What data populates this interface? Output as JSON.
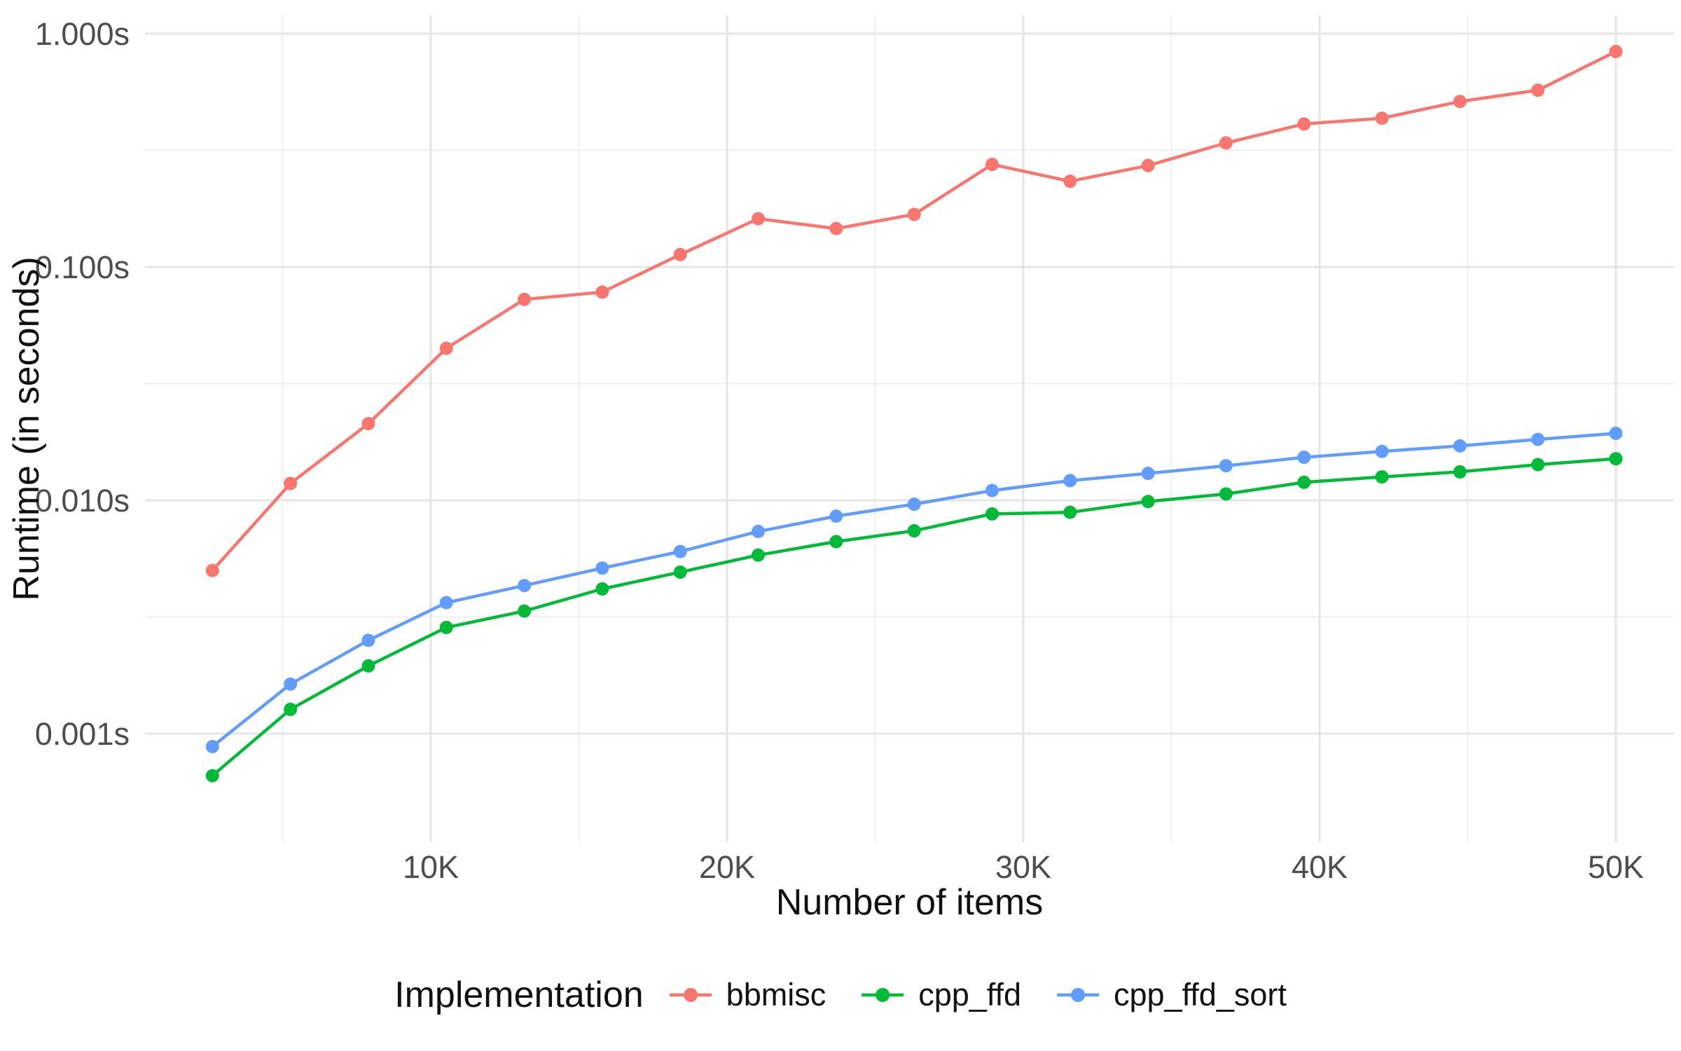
{
  "figure": {
    "background": "#ffffff",
    "grid_major_color": "#e5e5e5",
    "grid_minor_color": "#efefef",
    "tick_text_color": "#4d4d4d",
    "title_text_color": "#111111"
  },
  "axes": {
    "x": {
      "title": "Number of items",
      "ticks": [
        {
          "value": 10000,
          "label": "10K"
        },
        {
          "value": 20000,
          "label": "20K"
        },
        {
          "value": 30000,
          "label": "30K"
        },
        {
          "value": 40000,
          "label": "40K"
        },
        {
          "value": 50000,
          "label": "50K"
        }
      ],
      "minor_ticks": [
        5000,
        15000,
        25000,
        35000,
        45000
      ]
    },
    "y": {
      "title": "Runtime (in seconds)",
      "scale": "log10",
      "ticks": [
        {
          "value": 1.0,
          "label": "1.000s"
        },
        {
          "value": 0.1,
          "label": "0.100s"
        },
        {
          "value": 0.01,
          "label": "0.010s"
        },
        {
          "value": 0.001,
          "label": "0.001s"
        }
      ],
      "minor_ticks": [
        0.31622777,
        0.031622777,
        0.0031622777
      ]
    }
  },
  "legend": {
    "title": "Implementation",
    "entries": [
      {
        "label": "bbmisc",
        "color": "#F8766D"
      },
      {
        "label": "cpp_ffd",
        "color": "#00BA38"
      },
      {
        "label": "cpp_ffd_sort",
        "color": "#619CFF"
      }
    ]
  },
  "chart_data": {
    "type": "line",
    "title": "",
    "xlabel": "Number of items",
    "ylabel": "Runtime (in seconds)",
    "y_scale": "log10",
    "ylim": [
      0.0003,
      1.2
    ],
    "xlim": [
      300,
      52400
    ],
    "grid": "on",
    "legend_position": "bottom",
    "x": [
      2632,
      5263,
      7895,
      10526,
      13158,
      15789,
      18421,
      21053,
      23684,
      26316,
      28947,
      31579,
      34211,
      36842,
      39474,
      42105,
      44737,
      47368,
      50000
    ],
    "series": [
      {
        "name": "bbmisc",
        "color": "#F8766D",
        "values": [
          0.005,
          0.0118,
          0.0213,
          0.0448,
          0.0726,
          0.078,
          0.113,
          0.161,
          0.146,
          0.168,
          0.275,
          0.233,
          0.272,
          0.34,
          0.41,
          0.434,
          0.512,
          0.572,
          0.838
        ]
      },
      {
        "name": "cpp_ffd",
        "color": "#00BA38",
        "values": [
          0.00066,
          0.00127,
          0.00195,
          0.00285,
          0.00335,
          0.00417,
          0.00492,
          0.00582,
          0.00665,
          0.0074,
          0.00874,
          0.00888,
          0.00988,
          0.01064,
          0.01194,
          0.0126,
          0.01324,
          0.01422,
          0.01507
        ]
      },
      {
        "name": "cpp_ffd_sort",
        "color": "#619CFF",
        "values": [
          0.00088,
          0.00163,
          0.00251,
          0.00364,
          0.00431,
          0.00512,
          0.00603,
          0.00735,
          0.00855,
          0.00962,
          0.01101,
          0.01214,
          0.01304,
          0.01406,
          0.01528,
          0.0162,
          0.0171,
          0.01824,
          0.01936
        ]
      }
    ]
  }
}
